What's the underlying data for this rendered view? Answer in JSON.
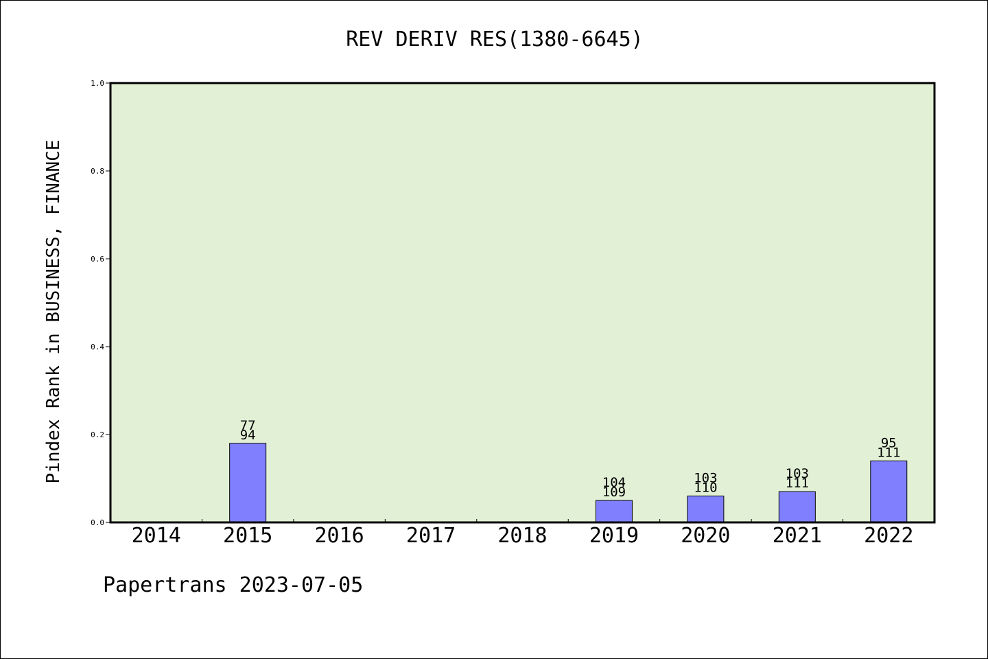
{
  "chart_data": {
    "type": "bar",
    "title": "REV DERIV RES(1380-6645)",
    "xlabel": "",
    "ylabel": "Pindex Rank in BUSINESS, FINANCE",
    "ylim": [
      0,
      1.0
    ],
    "yticks": [
      "0.0",
      "0.2",
      "0.4",
      "0.6",
      "0.8",
      "1.0"
    ],
    "categories": [
      "2014",
      "2015",
      "2016",
      "2017",
      "2018",
      "2019",
      "2020",
      "2021",
      "2022"
    ],
    "values": [
      0,
      0.18,
      0,
      0,
      0,
      0.05,
      0.06,
      0.07,
      0.14
    ],
    "bar_labels": [
      {
        "category": "2015",
        "top": "77",
        "bottom": "94"
      },
      {
        "category": "2019",
        "top": "104",
        "bottom": "109"
      },
      {
        "category": "2020",
        "top": "103",
        "bottom": "110"
      },
      {
        "category": "2021",
        "top": "103",
        "bottom": "111"
      },
      {
        "category": "2022",
        "top": "95",
        "bottom": "111"
      }
    ],
    "grid": false,
    "colors": {
      "plot_background": "#e2f0d6",
      "bar_fill": "#8080ff",
      "bar_stroke": "#000000"
    }
  },
  "footer": {
    "text": "Papertrans 2023-07-05"
  }
}
